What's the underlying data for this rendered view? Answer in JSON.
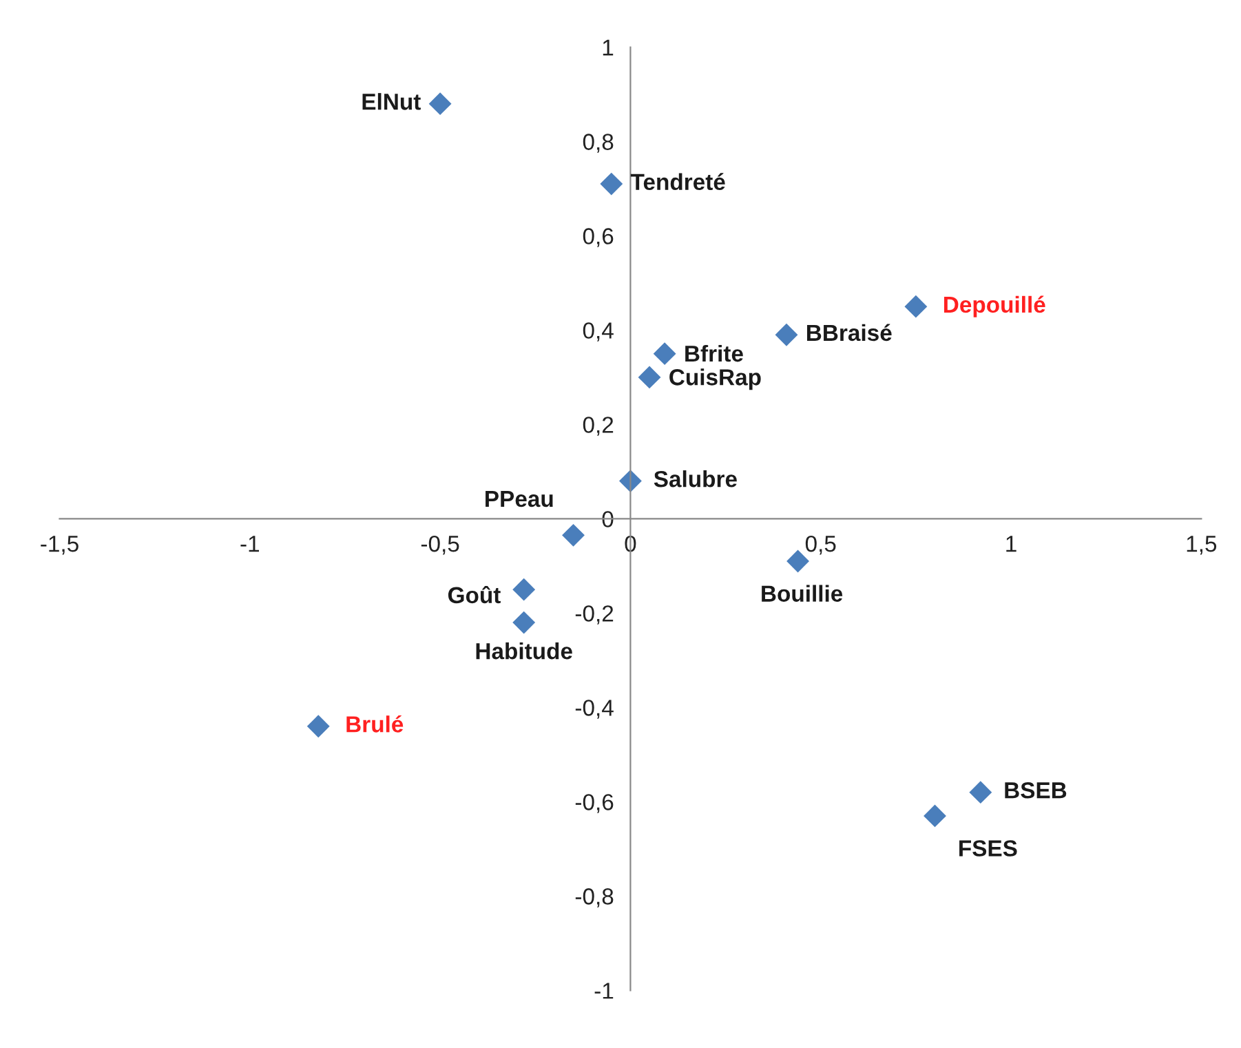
{
  "chart_data": {
    "type": "scatter",
    "marker": "diamond",
    "grid": false,
    "legend": false,
    "series": [
      {
        "color": "#4a7ebb",
        "x": [
          -0.5,
          -0.05,
          0.41,
          0.09,
          0.05,
          0.0,
          -0.15,
          0.44,
          -0.28,
          -0.28,
          0.92,
          0.8
        ],
        "values": [
          0.88,
          0.71,
          0.39,
          0.35,
          0.3,
          0.08,
          -0.035,
          -0.09,
          -0.15,
          -0.22,
          -0.58,
          -0.63
        ],
        "value_labels": [
          "ElNut",
          "Tendreté",
          "BBraisé",
          "Bfrite",
          "CuisRap",
          "Salubre",
          "PPeau",
          "Bouillie",
          "Goût",
          "Habitude",
          "BSEB",
          "FSES"
        ]
      },
      {
        "color": "#4a7ebb",
        "x": [
          0.75,
          -0.82
        ],
        "values": [
          0.45,
          -0.44
        ],
        "value_labels": [
          "Depouillé",
          "Brulé"
        ]
      }
    ],
    "xlim": [
      -1.5,
      1.5
    ],
    "ylim": [
      -1,
      1
    ],
    "xticks": [
      {
        "value": -1.5,
        "label": "-1,5"
      },
      {
        "value": -1,
        "label": "-1"
      },
      {
        "value": -0.5,
        "label": "-0,5"
      },
      {
        "value": 0,
        "label": "0"
      },
      {
        "value": 0.5,
        "label": "0,5"
      },
      {
        "value": 1,
        "label": "1"
      },
      {
        "value": 1.5,
        "label": "1,5"
      }
    ],
    "yticks": [
      {
        "value": -1,
        "label": "-1"
      },
      {
        "value": -0.8,
        "label": "-0,8"
      },
      {
        "value": -0.6,
        "label": "-0,6"
      },
      {
        "value": -0.4,
        "label": "-0,4"
      },
      {
        "value": -0.2,
        "label": "-0,2"
      },
      {
        "value": 0,
        "label": "0"
      },
      {
        "value": 0.2,
        "label": "0,2"
      },
      {
        "value": 0.4,
        "label": "0,4"
      },
      {
        "value": 0.6,
        "label": "0,6"
      },
      {
        "value": 0.8,
        "label": "0,8"
      },
      {
        "value": 1,
        "label": "1"
      }
    ]
  }
}
